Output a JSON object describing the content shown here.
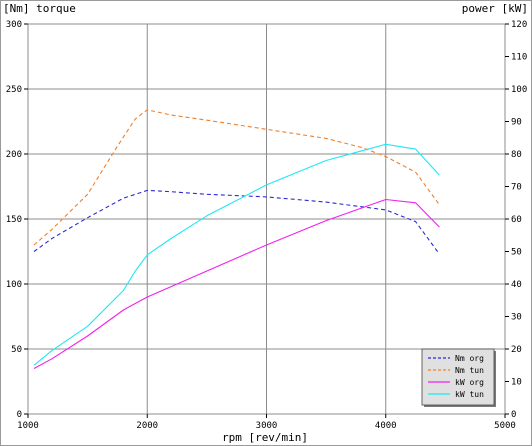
{
  "chart_data": {
    "type": "line",
    "left_axis_label": "[Nm] torque",
    "right_axis_label": "power [kW]",
    "xlabel": "rpm [rev/min]",
    "xlim": [
      1000,
      5000
    ],
    "ylim_left": [
      0,
      300
    ],
    "ylim_right": [
      0,
      120
    ],
    "x_ticks": [
      1000,
      2000,
      3000,
      4000,
      5000
    ],
    "y_left_ticks": [
      0,
      50,
      100,
      150,
      200,
      250,
      300
    ],
    "y_right_ticks": [
      0,
      10,
      20,
      30,
      40,
      50,
      60,
      70,
      80,
      90,
      100,
      110,
      120
    ],
    "grid": true,
    "legend_position": "bottom-right",
    "series": [
      {
        "name": "Nm org",
        "axis": "left",
        "color": "#2b2bd6",
        "dash": "dashed",
        "points": [
          [
            1050,
            125
          ],
          [
            1200,
            135
          ],
          [
            1500,
            151
          ],
          [
            1800,
            166
          ],
          [
            2000,
            172
          ],
          [
            2200,
            171
          ],
          [
            2500,
            169
          ],
          [
            3000,
            167
          ],
          [
            3500,
            163
          ],
          [
            4000,
            157
          ],
          [
            4250,
            148
          ],
          [
            4450,
            123
          ]
        ]
      },
      {
        "name": "Nm tun",
        "axis": "left",
        "color": "#f07f2a",
        "dash": "dashed",
        "points": [
          [
            1050,
            130
          ],
          [
            1200,
            142
          ],
          [
            1500,
            169
          ],
          [
            1750,
            206
          ],
          [
            1900,
            227
          ],
          [
            2000,
            234
          ],
          [
            2200,
            230
          ],
          [
            2500,
            226
          ],
          [
            3000,
            219
          ],
          [
            3500,
            212
          ],
          [
            3800,
            205
          ],
          [
            4000,
            198
          ],
          [
            4250,
            186
          ],
          [
            4450,
            161
          ]
        ]
      },
      {
        "name": "kW org",
        "axis": "right",
        "color": "#f020f0",
        "dash": "solid",
        "points": [
          [
            1050,
            14
          ],
          [
            1200,
            17
          ],
          [
            1500,
            24
          ],
          [
            1800,
            32
          ],
          [
            2000,
            36
          ],
          [
            2500,
            44
          ],
          [
            3000,
            52
          ],
          [
            3500,
            59.5
          ],
          [
            4000,
            66
          ],
          [
            4250,
            65
          ],
          [
            4450,
            57.5
          ]
        ]
      },
      {
        "name": "kW tun",
        "axis": "right",
        "color": "#20e8f2",
        "dash": "solid",
        "points": [
          [
            1050,
            15
          ],
          [
            1200,
            19.5
          ],
          [
            1500,
            27
          ],
          [
            1800,
            38
          ],
          [
            1900,
            44
          ],
          [
            2000,
            49
          ],
          [
            2200,
            54
          ],
          [
            2500,
            61
          ],
          [
            3000,
            70.5
          ],
          [
            3500,
            78
          ],
          [
            3800,
            81
          ],
          [
            4000,
            83
          ],
          [
            4250,
            81.5
          ],
          [
            4450,
            73.5
          ]
        ]
      }
    ]
  }
}
